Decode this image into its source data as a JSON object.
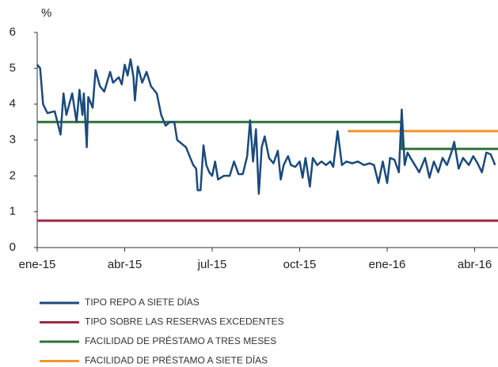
{
  "chart_data": {
    "type": "line",
    "y_label": "%",
    "xlim": [
      0,
      15.8
    ],
    "xticks": [
      {
        "value": 0,
        "label": "ene-15"
      },
      {
        "value": 3,
        "label": "abr-15"
      },
      {
        "value": 6,
        "label": "jul-15"
      },
      {
        "value": 9,
        "label": "oct-15"
      },
      {
        "value": 12,
        "label": "ene-16"
      },
      {
        "value": 15,
        "label": "abr-16"
      }
    ],
    "ylim": [
      0,
      6
    ],
    "yticks": [
      0,
      1,
      2,
      3,
      4,
      5,
      6
    ],
    "grid": false,
    "series": [
      {
        "name": "TIPO REPO A SIETE DÍAS",
        "color": "#1b4a7c",
        "x": [
          0,
          0.1,
          0.2,
          0.35,
          0.6,
          0.8,
          0.9,
          1.0,
          1.2,
          1.35,
          1.45,
          1.55,
          1.6,
          1.7,
          1.75,
          1.9,
          2.0,
          2.15,
          2.3,
          2.5,
          2.6,
          2.8,
          2.9,
          3.0,
          3.1,
          3.2,
          3.3,
          3.35,
          3.45,
          3.6,
          3.75,
          3.9,
          4.1,
          4.25,
          4.4,
          4.55,
          4.7,
          4.8,
          4.95,
          5.1,
          5.25,
          5.35,
          5.45,
          5.5,
          5.6,
          5.7,
          5.8,
          5.9,
          6.0,
          6.1,
          6.2,
          6.4,
          6.6,
          6.75,
          6.9,
          7.05,
          7.2,
          7.3,
          7.4,
          7.5,
          7.6,
          7.7,
          7.8,
          7.95,
          8.1,
          8.25,
          8.35,
          8.45,
          8.6,
          8.7,
          8.85,
          9.0,
          9.1,
          9.2,
          9.35,
          9.45,
          9.6,
          9.75,
          9.9,
          10.05,
          10.15,
          10.3,
          10.45,
          10.6,
          10.8,
          11.0,
          11.2,
          11.4,
          11.55,
          11.7,
          11.85,
          12.0,
          12.1,
          12.25,
          12.4,
          12.5,
          12.6,
          12.7,
          12.8,
          12.95,
          13.1,
          13.3,
          13.45,
          13.6,
          13.75,
          13.9,
          14.05,
          14.2,
          14.3,
          14.45,
          14.6,
          14.8,
          14.95,
          15.1,
          15.25,
          15.4,
          15.55,
          15.7
        ],
        "values": [
          5.1,
          5.0,
          4.0,
          3.75,
          3.8,
          3.15,
          4.3,
          3.7,
          4.3,
          3.5,
          4.4,
          3.7,
          4.3,
          2.8,
          4.2,
          3.9,
          4.95,
          4.5,
          4.35,
          4.9,
          4.6,
          4.75,
          4.55,
          5.1,
          4.8,
          5.25,
          4.75,
          4.1,
          5.05,
          4.6,
          4.9,
          4.5,
          4.3,
          3.7,
          3.4,
          3.5,
          3.5,
          3.0,
          2.9,
          2.8,
          2.5,
          2.3,
          2.2,
          1.6,
          1.6,
          2.85,
          2.3,
          2.1,
          2.0,
          2.4,
          1.9,
          2.0,
          2.0,
          2.4,
          2.05,
          2.05,
          2.55,
          3.55,
          2.4,
          3.3,
          1.5,
          2.8,
          3.1,
          2.5,
          2.35,
          2.7,
          1.9,
          2.3,
          2.55,
          2.3,
          2.25,
          2.4,
          1.95,
          2.5,
          1.7,
          2.5,
          2.3,
          2.4,
          2.3,
          2.4,
          2.25,
          3.25,
          2.3,
          2.4,
          2.35,
          2.4,
          2.3,
          2.35,
          2.3,
          1.8,
          2.4,
          1.8,
          2.5,
          2.45,
          2.1,
          3.85,
          2.3,
          2.65,
          2.5,
          2.3,
          2.1,
          2.5,
          1.95,
          2.4,
          2.1,
          2.5,
          2.3,
          2.65,
          2.95,
          2.2,
          2.5,
          2.3,
          2.55,
          2.35,
          2.1,
          2.65,
          2.6,
          2.3
        ]
      },
      {
        "name": "TIPO SOBRE LAS RESERVAS EXCEDENTES",
        "color": "#9b2a45",
        "x": [
          0,
          15.8
        ],
        "values": [
          0.75,
          0.75
        ]
      },
      {
        "name": "FACILIDAD DE PRÉSTAMO A TRES MESES",
        "color": "#2d7339",
        "x": [
          0,
          12.5,
          12.5,
          15.8
        ],
        "values": [
          3.5,
          3.5,
          2.75,
          2.75
        ]
      },
      {
        "name": "FACILIDAD DE PRÉSTAMO A SIETE DÍAS",
        "color": "#f0962e",
        "x": [
          10.65,
          15.8
        ],
        "values": [
          3.25,
          3.25
        ]
      }
    ]
  }
}
